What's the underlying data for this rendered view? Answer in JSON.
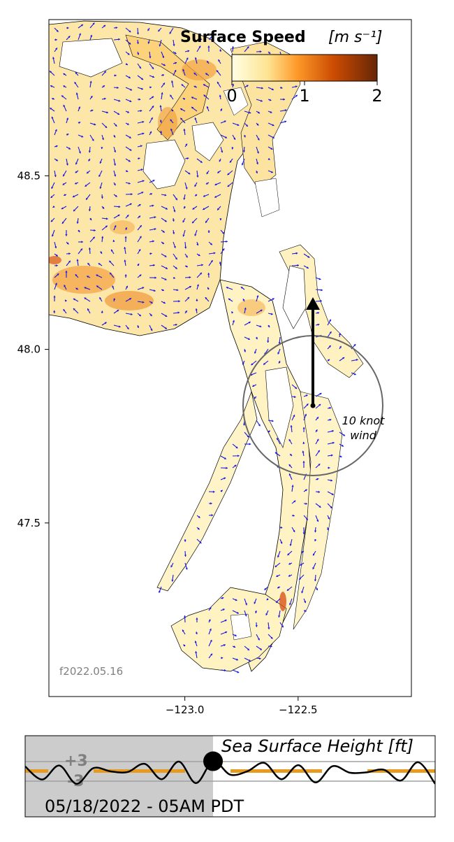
{
  "chart_data": [
    {
      "type": "map",
      "title": "Surface Speed",
      "title_units": "[m s⁻¹]",
      "colorbar": {
        "min": 0,
        "max": 2,
        "ticks": [
          "0",
          "1",
          "2"
        ],
        "colormap": "YlOrBr"
      },
      "x_ticks": [
        {
          "value": -123.0,
          "label": "−123.0"
        },
        {
          "value": -122.5,
          "label": "−122.5"
        }
      ],
      "y_ticks": [
        {
          "value": 48.5,
          "label": "48.5"
        },
        {
          "value": 48.0,
          "label": "48.0"
        },
        {
          "value": 47.5,
          "label": "47.5"
        }
      ],
      "xlim": [
        -123.6,
        -122.0
      ],
      "ylim": [
        47.0,
        48.95
      ],
      "wind": {
        "label_line1": "10 knot",
        "label_line2": "wind",
        "direction": "north",
        "scale_knots": 10
      },
      "run_label": "f2022.05.16",
      "colors": {
        "vectors": "#1414e6",
        "coastline": "#000000",
        "wind_arrow": "#000000",
        "wind_circle": "#666666"
      }
    },
    {
      "type": "line",
      "title": "Sea Surface Height [ft]",
      "ytick_labels": [
        "+3",
        "-3"
      ],
      "ylim": [
        -3,
        3
      ],
      "series": [
        {
          "x_hours": [
            0,
            3,
            6,
            9,
            12,
            15,
            18,
            21,
            24,
            27,
            30,
            33,
            36,
            39,
            42,
            45,
            48,
            51,
            54,
            57,
            60,
            63,
            66,
            69,
            72
          ],
          "values": [
            1.5,
            -2.5,
            1.8,
            -3.8,
            1.0,
            0.0,
            -0.2,
            2.3,
            -2.4,
            3.0,
            -3.6,
            3.1,
            -1.0,
            0.0,
            2.6,
            -2.4,
            1.9,
            -3.4,
            1.6,
            -0.4,
            -0.3,
            0.5,
            -2.8,
            2.8,
            -3.8
          ]
        }
      ],
      "current_index": 11,
      "timestamp": "05/18/2022 - 05AM PDT",
      "colors": {
        "line": "#000000",
        "marker": "#000000",
        "past_shade": "#cccccc",
        "band": "#e69a1e"
      }
    }
  ]
}
